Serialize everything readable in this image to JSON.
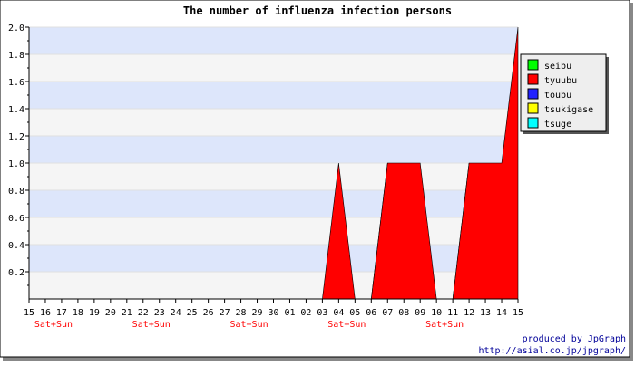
{
  "chart_data": {
    "type": "area",
    "title": "The number of influenza infection persons",
    "x_labels": [
      "15",
      "16",
      "17",
      "18",
      "19",
      "20",
      "21",
      "22",
      "23",
      "24",
      "25",
      "26",
      "27",
      "28",
      "29",
      "30",
      "01",
      "02",
      "03",
      "04",
      "05",
      "06",
      "07",
      "08",
      "09",
      "10",
      "11",
      "12",
      "13",
      "14",
      "15"
    ],
    "x_sub_labels": [
      {
        "index": 1,
        "text": "Sat+Sun"
      },
      {
        "index": 7,
        "text": "Sat+Sun"
      },
      {
        "index": 13,
        "text": "Sat+Sun"
      },
      {
        "index": 19,
        "text": "Sat+Sun"
      },
      {
        "index": 25,
        "text": "Sat+Sun"
      }
    ],
    "y_ticks": [
      "0.2",
      "0.4",
      "0.6",
      "0.8",
      "1.0",
      "1.2",
      "1.4",
      "1.6",
      "1.8",
      "2.0"
    ],
    "ylim": [
      0,
      2.0
    ],
    "legend_position": "top-right",
    "series": [
      {
        "name": "seibu",
        "color": "#00ff00",
        "values": [
          0,
          0,
          0,
          0,
          0,
          0,
          0,
          0,
          0,
          0,
          0,
          0,
          0,
          0,
          0,
          0,
          0,
          0,
          0,
          0,
          0,
          0,
          1,
          0,
          0,
          0,
          0,
          1,
          0,
          0,
          0
        ]
      },
      {
        "name": "tyuubu",
        "color": "#ff0000",
        "values": [
          0,
          0,
          0,
          0,
          0,
          0,
          0,
          0,
          0,
          0,
          0,
          0,
          0,
          0,
          0,
          0,
          0,
          0,
          0,
          1,
          0,
          0,
          1,
          1,
          1,
          0,
          0,
          1,
          1,
          1,
          2
        ]
      },
      {
        "name": "toubu",
        "color": "#2222ff",
        "values": [
          0,
          0,
          0,
          0,
          0,
          0,
          0,
          0,
          0,
          0,
          0,
          0,
          0,
          0,
          0,
          0,
          0,
          0,
          0,
          0,
          0,
          0,
          0,
          0,
          0,
          0,
          0,
          0,
          0,
          0,
          0
        ]
      },
      {
        "name": "tsukigase",
        "color": "#ffff00",
        "values": [
          0,
          0,
          0,
          0,
          0,
          0,
          0,
          0,
          0,
          0,
          0,
          0,
          0,
          0,
          0,
          0,
          0,
          0,
          0,
          0,
          0,
          0,
          0,
          0,
          0,
          0,
          0,
          0,
          0,
          0,
          0
        ]
      },
      {
        "name": "tsuge",
        "color": "#00ffff",
        "values": [
          0,
          0,
          0,
          0,
          0,
          0,
          0,
          0,
          0,
          0,
          0,
          0,
          0,
          0,
          0,
          0,
          0,
          0,
          0,
          0,
          0,
          0,
          0,
          0,
          0,
          0,
          0,
          0,
          0,
          0,
          0
        ]
      }
    ],
    "band_colors": [
      "#f5f5f5",
      "#dde6fb"
    ],
    "credit_line1": "produced by JpGraph",
    "credit_line2": "http://asial.co.jp/jpgraph/",
    "credit_color": "#000099",
    "sub_label_color": "#ff0000"
  }
}
